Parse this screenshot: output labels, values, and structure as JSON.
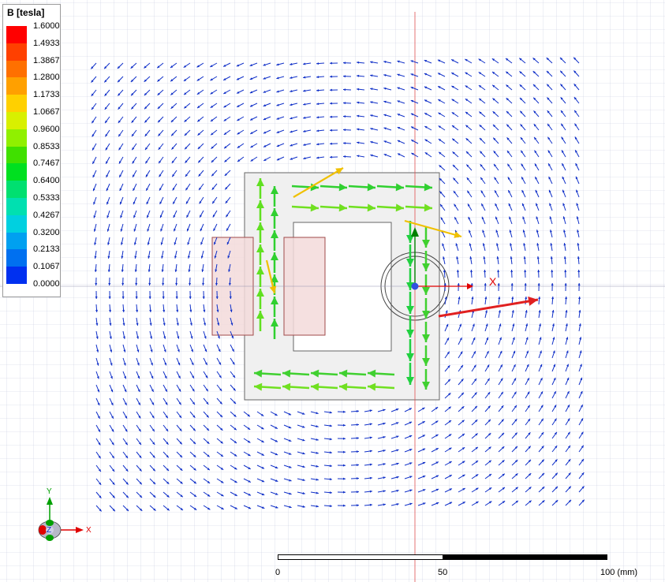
{
  "legend": {
    "title": "B [tesla]",
    "entries": [
      {
        "label": "1.6000",
        "color": "#ff0000"
      },
      {
        "label": "1.4933",
        "color": "#ff4000"
      },
      {
        "label": "1.3867",
        "color": "#ff7000"
      },
      {
        "label": "1.2800",
        "color": "#ffa000"
      },
      {
        "label": "1.1733",
        "color": "#ffd000"
      },
      {
        "label": "1.0667",
        "color": "#d8f000"
      },
      {
        "label": "0.9600",
        "color": "#90f000"
      },
      {
        "label": "0.8533",
        "color": "#40e000"
      },
      {
        "label": "0.7467",
        "color": "#00e020"
      },
      {
        "label": "0.6400",
        "color": "#00e070"
      },
      {
        "label": "0.5333",
        "color": "#00e0b0"
      },
      {
        "label": "0.4267",
        "color": "#00d0e0"
      },
      {
        "label": "0.3200",
        "color": "#00a0f0"
      },
      {
        "label": "0.2133",
        "color": "#0070f0"
      },
      {
        "label": "0.1067",
        "color": "#0030f0"
      },
      {
        "label": "0.0000",
        "color": "#0000f0"
      }
    ]
  },
  "axes": {
    "x_label": "X",
    "y_label": "Y",
    "z_label": "Z"
  },
  "scale": {
    "label_0": "0",
    "label_50": "50",
    "label_100": "100 (mm)"
  }
}
